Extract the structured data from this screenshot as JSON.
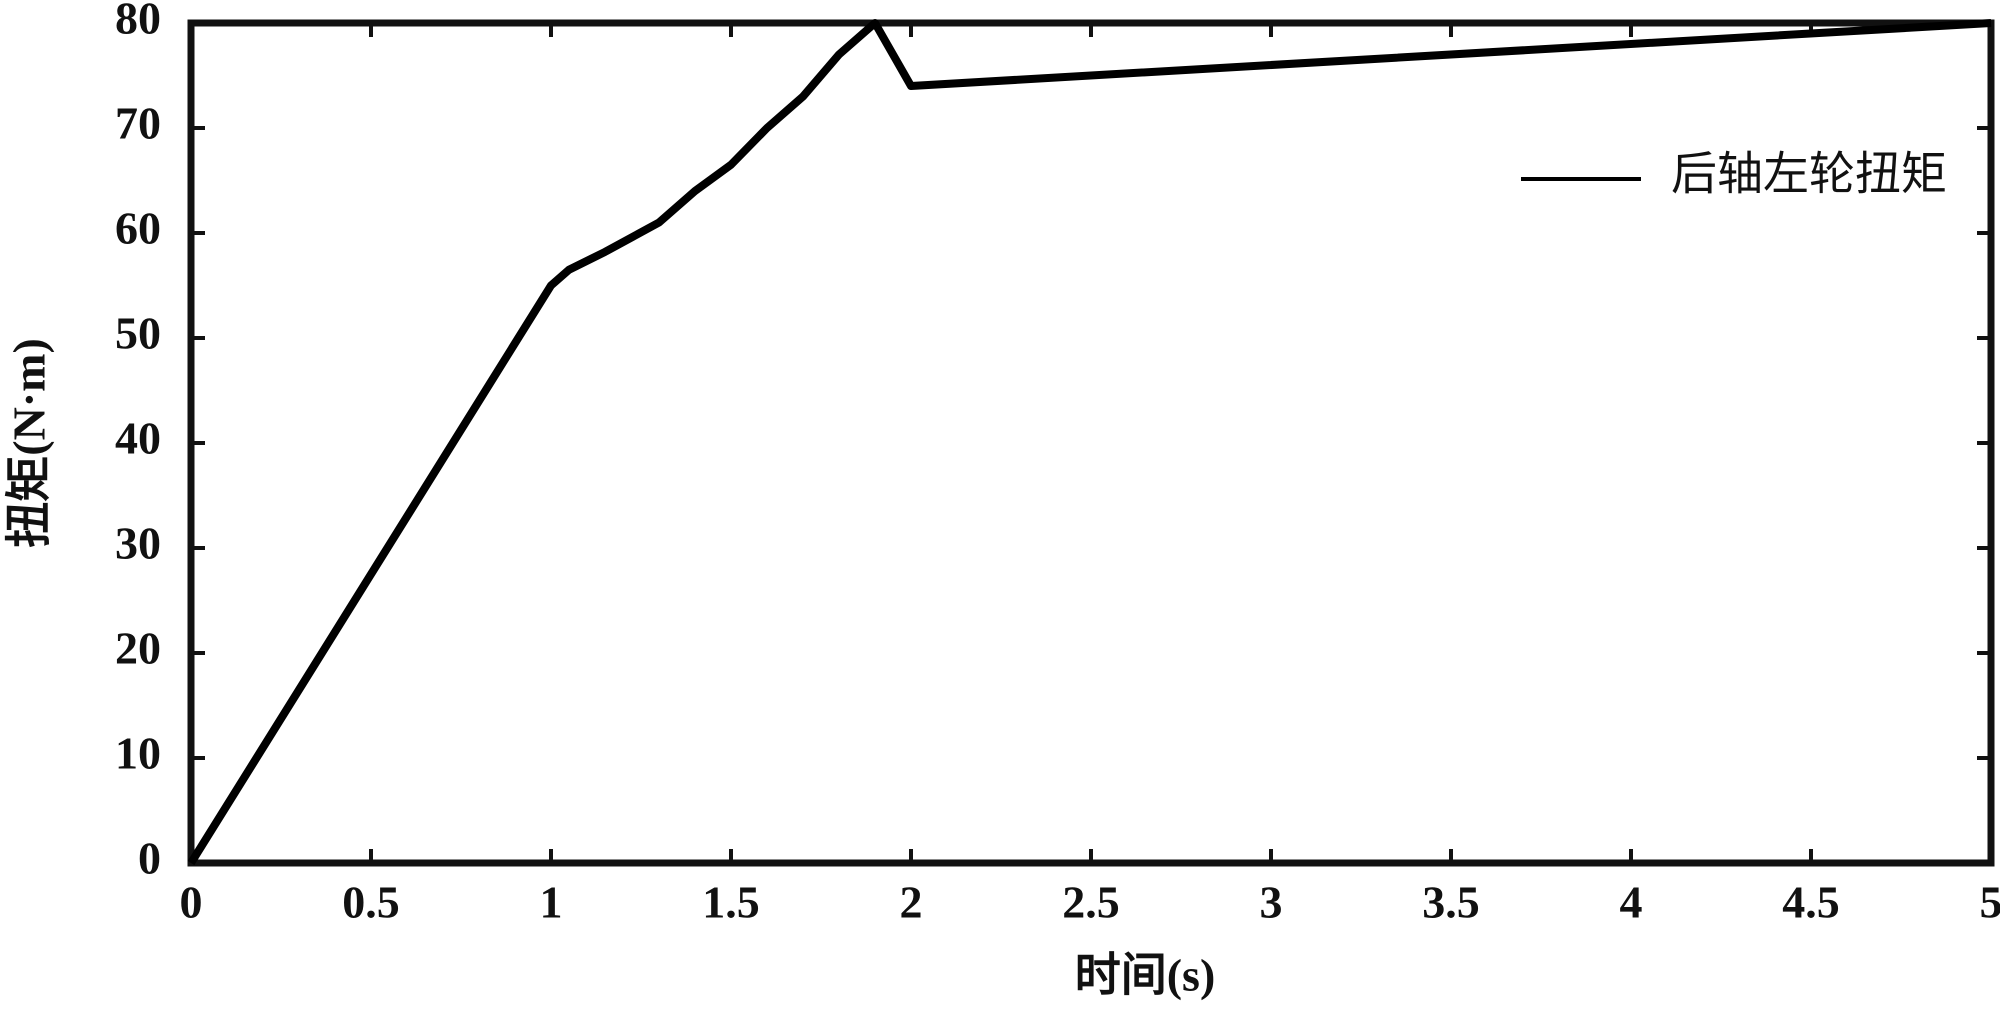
{
  "chart_data": {
    "type": "line",
    "xlabel": "时间(s)",
    "ylabel": "扭矩(N·m)",
    "x": [
      0,
      1,
      1.05,
      1.15,
      1.3,
      1.4,
      1.5,
      1.6,
      1.7,
      1.8,
      1.9,
      2,
      5
    ],
    "series": [
      {
        "name": "后轴左轮扭矩",
        "color": "#000000",
        "values": [
          0,
          55,
          56.5,
          58.2,
          61,
          64,
          66.5,
          70,
          73,
          77,
          80,
          74,
          80
        ]
      }
    ],
    "xlim": [
      0,
      5
    ],
    "xticks": [
      0,
      0.5,
      1,
      1.5,
      2,
      2.5,
      3,
      3.5,
      4,
      4.5,
      5
    ],
    "ylim": [
      0,
      80
    ],
    "yticks": [
      0,
      10,
      20,
      30,
      40,
      50,
      60,
      70,
      80
    ],
    "grid": false,
    "legend": "upper right"
  }
}
